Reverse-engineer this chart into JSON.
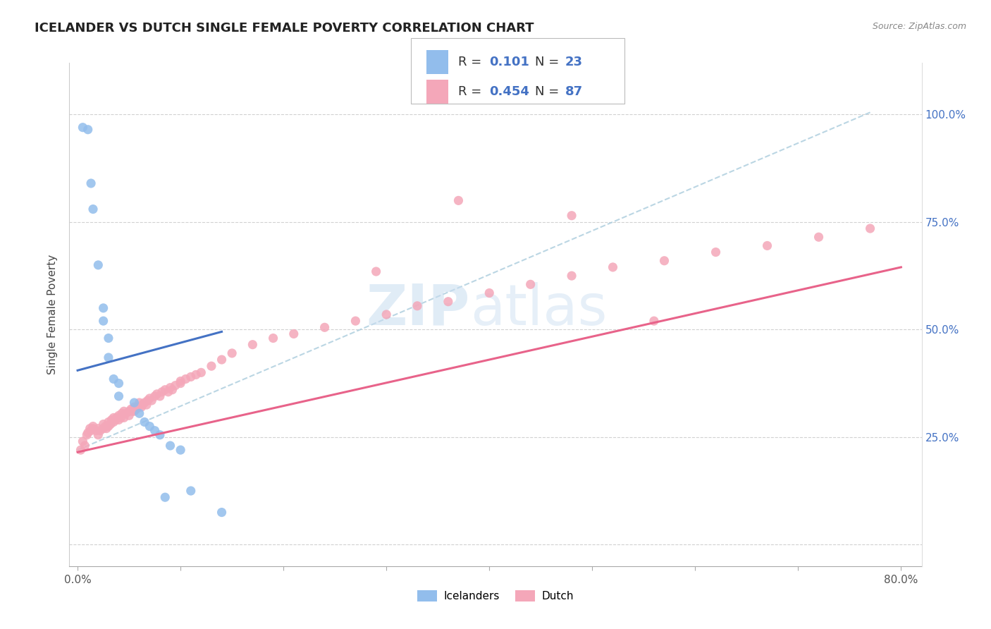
{
  "title": "ICELANDER VS DUTCH SINGLE FEMALE POVERTY CORRELATION CHART",
  "source": "Source: ZipAtlas.com",
  "ylabel": "Single Female Poverty",
  "x_tick_positions": [
    0.0,
    0.1,
    0.2,
    0.3,
    0.4,
    0.5,
    0.6,
    0.7,
    0.8
  ],
  "x_tick_labels": [
    "0.0%",
    "",
    "",
    "",
    "",
    "",
    "",
    "",
    "80.0%"
  ],
  "y_ticks": [
    0.0,
    0.25,
    0.5,
    0.75,
    1.0
  ],
  "y_tick_labels_right": [
    "",
    "25.0%",
    "50.0%",
    "75.0%",
    "100.0%"
  ],
  "icelander_color": "#92BDEC",
  "dutch_color": "#F4A7B9",
  "icelander_line_color": "#4472C4",
  "dutch_line_color": "#E8638A",
  "dashed_line_color": "#AACCDD",
  "watermark_zip_color": "#C8DDF0",
  "watermark_atlas_color": "#C8DDF0",
  "legend_box_color": "#EEEEEE",
  "x_ice": [
    0.005,
    0.01,
    0.013,
    0.015,
    0.02,
    0.025,
    0.025,
    0.03,
    0.03,
    0.035,
    0.04,
    0.04,
    0.055,
    0.06,
    0.065,
    0.07,
    0.075,
    0.08,
    0.09,
    0.1,
    0.11,
    0.085,
    0.14
  ],
  "y_ice": [
    0.97,
    0.965,
    0.84,
    0.78,
    0.65,
    0.55,
    0.52,
    0.48,
    0.435,
    0.385,
    0.375,
    0.345,
    0.33,
    0.305,
    0.285,
    0.275,
    0.265,
    0.255,
    0.23,
    0.22,
    0.125,
    0.11,
    0.075
  ],
  "x_dutch": [
    0.003,
    0.005,
    0.007,
    0.009,
    0.01,
    0.012,
    0.013,
    0.015,
    0.015,
    0.018,
    0.02,
    0.02,
    0.022,
    0.025,
    0.025,
    0.027,
    0.028,
    0.03,
    0.03,
    0.032,
    0.033,
    0.035,
    0.035,
    0.037,
    0.038,
    0.04,
    0.04,
    0.042,
    0.043,
    0.045,
    0.045,
    0.047,
    0.05,
    0.05,
    0.052,
    0.053,
    0.055,
    0.055,
    0.057,
    0.058,
    0.06,
    0.062,
    0.063,
    0.065,
    0.067,
    0.068,
    0.07,
    0.072,
    0.075,
    0.077,
    0.08,
    0.082,
    0.085,
    0.088,
    0.09,
    0.092,
    0.095,
    0.1,
    0.1,
    0.105,
    0.11,
    0.115,
    0.12,
    0.13,
    0.14,
    0.15,
    0.17,
    0.19,
    0.21,
    0.24,
    0.27,
    0.3,
    0.33,
    0.36,
    0.4,
    0.44,
    0.48,
    0.52,
    0.57,
    0.62,
    0.67,
    0.72,
    0.77,
    0.56,
    0.48,
    0.37,
    0.29
  ],
  "y_dutch": [
    0.22,
    0.24,
    0.23,
    0.255,
    0.26,
    0.27,
    0.265,
    0.27,
    0.275,
    0.265,
    0.27,
    0.255,
    0.265,
    0.27,
    0.28,
    0.275,
    0.27,
    0.275,
    0.285,
    0.28,
    0.29,
    0.285,
    0.295,
    0.29,
    0.295,
    0.3,
    0.29,
    0.295,
    0.305,
    0.31,
    0.295,
    0.305,
    0.31,
    0.3,
    0.315,
    0.31,
    0.32,
    0.31,
    0.315,
    0.32,
    0.33,
    0.32,
    0.325,
    0.33,
    0.325,
    0.335,
    0.34,
    0.335,
    0.345,
    0.35,
    0.345,
    0.355,
    0.36,
    0.355,
    0.365,
    0.36,
    0.37,
    0.375,
    0.38,
    0.385,
    0.39,
    0.395,
    0.4,
    0.415,
    0.43,
    0.445,
    0.465,
    0.48,
    0.49,
    0.505,
    0.52,
    0.535,
    0.555,
    0.565,
    0.585,
    0.605,
    0.625,
    0.645,
    0.66,
    0.68,
    0.695,
    0.715,
    0.735,
    0.52,
    0.765,
    0.8,
    0.635
  ],
  "icelander_line_x": [
    0.0,
    0.14
  ],
  "icelander_line_y": [
    0.405,
    0.495
  ],
  "dutch_line_x": [
    0.0,
    0.8
  ],
  "dutch_line_y": [
    0.215,
    0.645
  ],
  "dashed_line_x": [
    0.0,
    0.77
  ],
  "dashed_line_y": [
    0.22,
    1.005
  ]
}
